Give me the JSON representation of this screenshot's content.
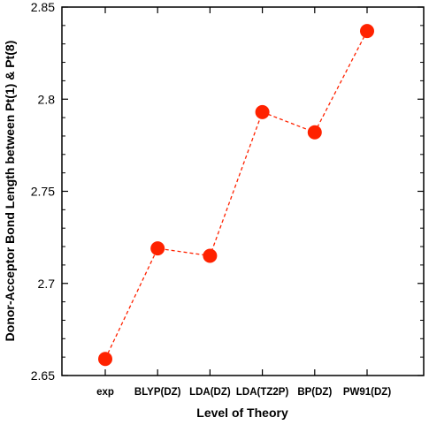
{
  "chart_data": {
    "type": "line",
    "title": "",
    "xlabel": "Level of Theory",
    "ylabel": "Donor-Acceptor Bond Length between Pt(1) & Pt(8)",
    "categories": [
      "exp",
      "BLYP(DZ)",
      "LDA(DZ)",
      "LDA(TZ2P)",
      "BP(DZ)",
      "PW91(DZ)"
    ],
    "series": [
      {
        "values": [
          2.659,
          2.719,
          2.715,
          2.793,
          2.782,
          2.837
        ]
      }
    ],
    "ylim": [
      2.65,
      2.85
    ],
    "yticks": [
      "2.65",
      "2.7",
      "2.75",
      "2.8",
      "2.85"
    ],
    "grid": false,
    "marker_color": "#ff2200",
    "line_style": "dashed"
  }
}
